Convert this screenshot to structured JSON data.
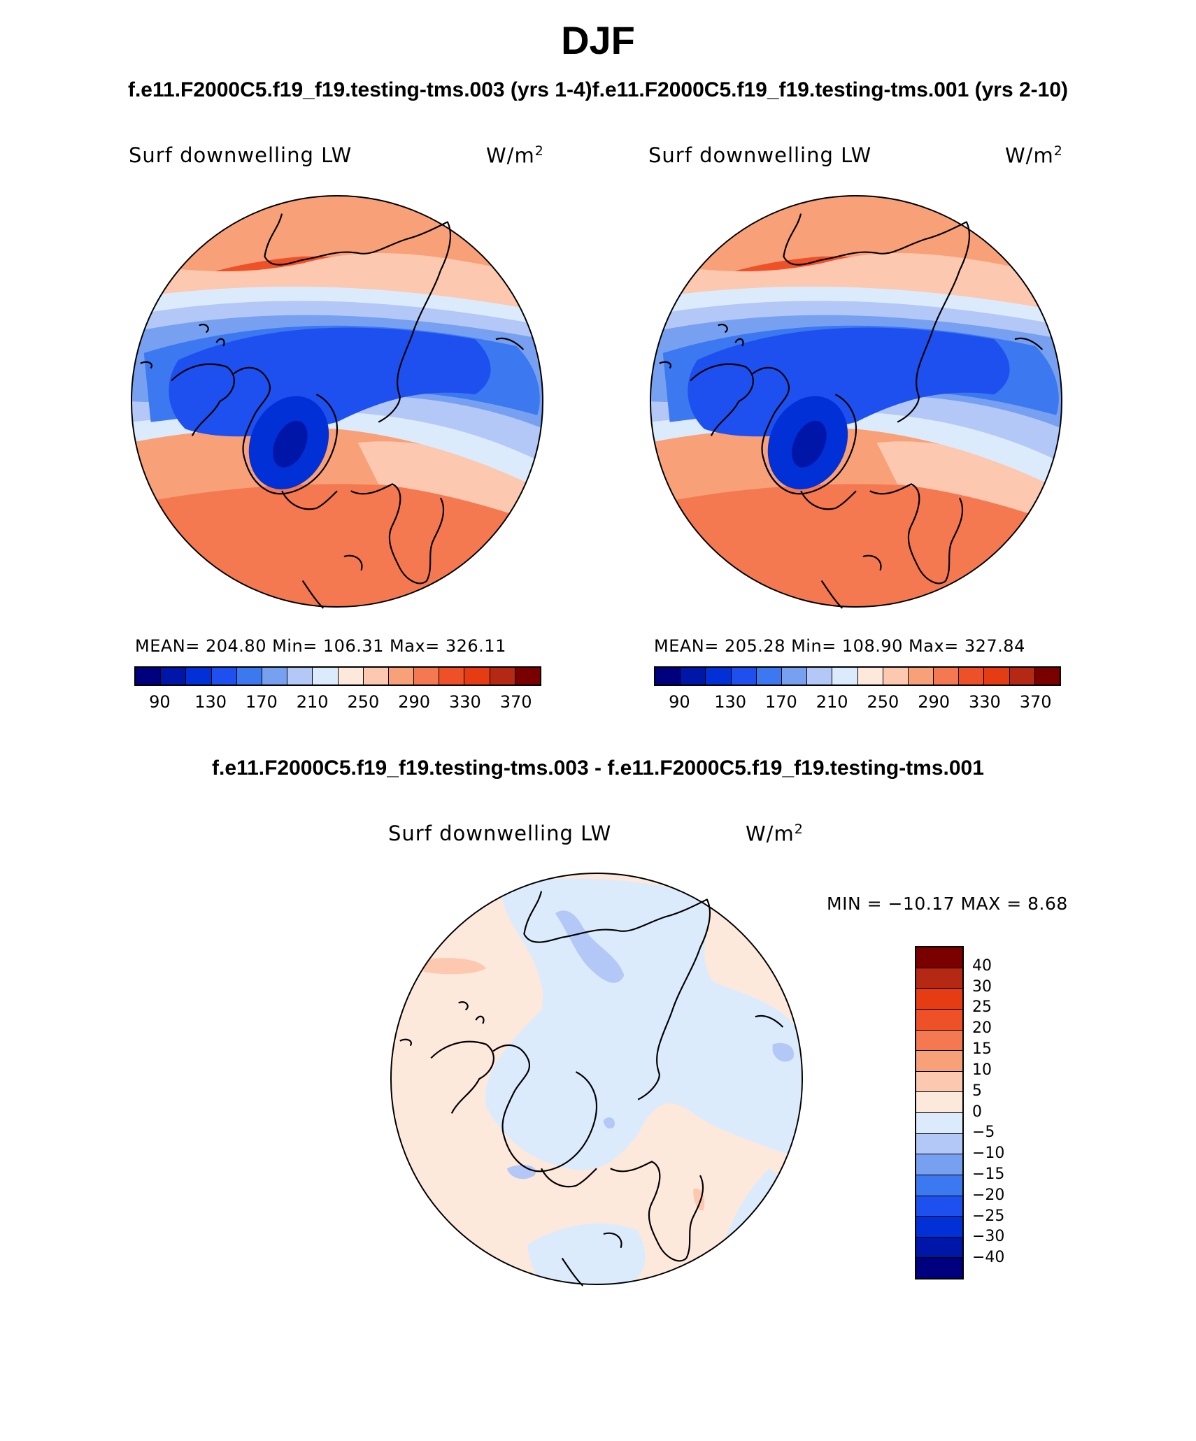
{
  "title": "DJF",
  "header_left": "f.e11.F2000C5.f19_f19.testing-tms.003 (yrs 1-4)",
  "header_right": "f.e11.F2000C5.f19_f19.testing-tms.001 (yrs 2-10)",
  "diff_title": "f.e11.F2000C5.f19_f19.testing-tms.003 - f.e11.F2000C5.f19_f19.testing-tms.001",
  "panels": [
    {
      "variable": "Surf downwelling LW",
      "units": "W/m",
      "units_exp": "2",
      "stats": "MEAN= 204.80   Min= 106.31   Max= 326.11"
    },
    {
      "variable": "Surf downwelling LW",
      "units": "W/m",
      "units_exp": "2",
      "stats": "MEAN= 205.28   Min= 108.90   Max= 327.84"
    }
  ],
  "diff_panel": {
    "variable": "Surf downwelling LW",
    "units": "W/m",
    "units_exp": "2",
    "stats": "MIN = −10.17 MAX =    8.68"
  },
  "abs_colorbar": {
    "colors": [
      "#00007f",
      "#0016a8",
      "#0030d6",
      "#1e50f0",
      "#3c78f0",
      "#78a0f0",
      "#b4c8f8",
      "#dcebfc",
      "#fde8dc",
      "#fcc8b0",
      "#f8a078",
      "#f47850",
      "#ee5028",
      "#e63c14",
      "#b42814",
      "#7a0000"
    ],
    "tick_labels": [
      "90",
      "130",
      "170",
      "210",
      "250",
      "290",
      "330",
      "370"
    ]
  },
  "diff_colorbar": {
    "colors": [
      "#7a0000",
      "#b42814",
      "#e63c14",
      "#ee5028",
      "#f47850",
      "#f8a078",
      "#fcc8b0",
      "#fde8dc",
      "#dcebfc",
      "#b4c8f8",
      "#78a0f0",
      "#3c78f0",
      "#1e50f0",
      "#0030d6",
      "#0016a8",
      "#00007f"
    ],
    "tick_labels": [
      "40",
      "30",
      "25",
      "20",
      "15",
      "10",
      "5",
      "0",
      "−5",
      "−10",
      "−15",
      "−20",
      "−25",
      "−30",
      "−40"
    ]
  },
  "map_colors": {
    "deep_blue": "#1e50f0",
    "darker_blue": "#0030d6",
    "mid_blue": "#3c78f0",
    "light_blue": "#78a0f0",
    "pale_blue": "#b4c8f8",
    "very_pale_blue": "#dcebfc",
    "pale_peach": "#fde8dc",
    "peach": "#fcc8b0",
    "salmon": "#f8a078",
    "orange": "#f47850",
    "red_orange": "#ee5028"
  }
}
